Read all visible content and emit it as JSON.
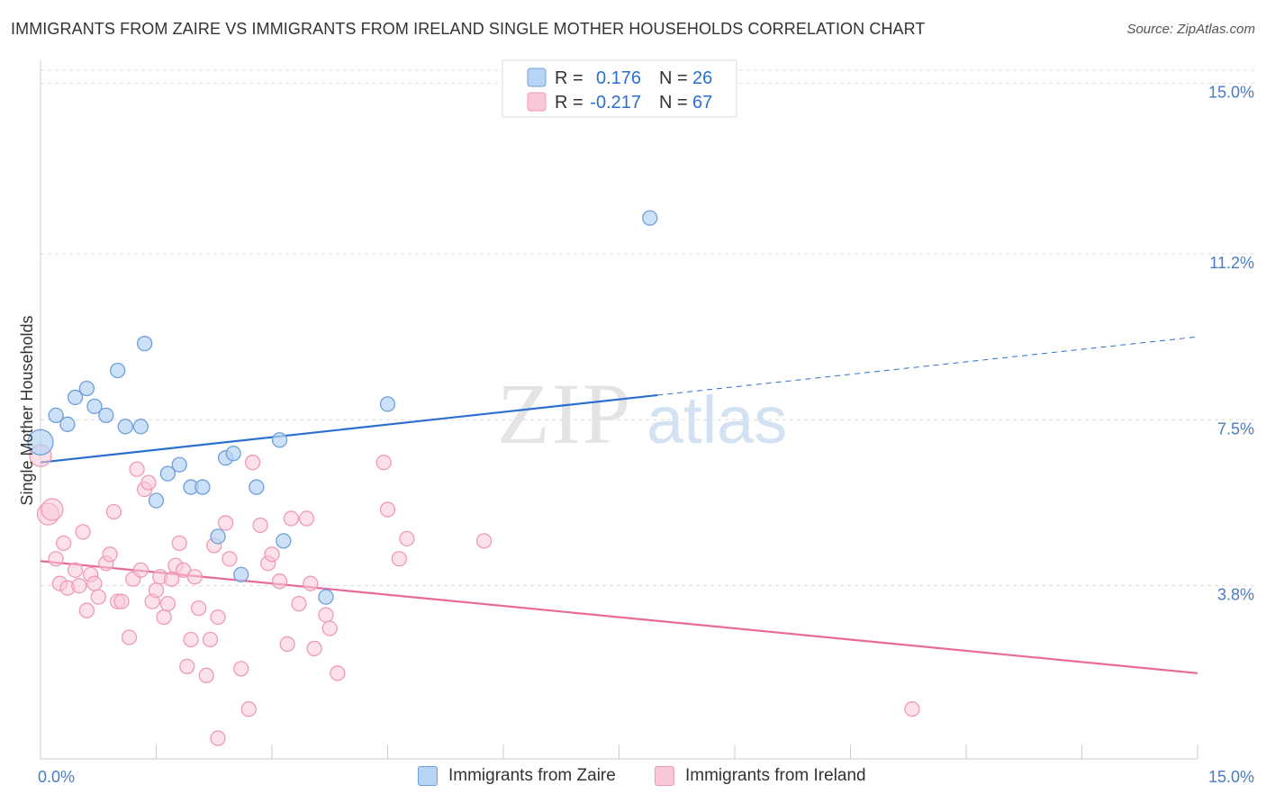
{
  "title": "IMMIGRANTS FROM ZAIRE VS IMMIGRANTS FROM IRELAND SINGLE MOTHER HOUSEHOLDS CORRELATION CHART",
  "source": "Source: ZipAtlas.com",
  "watermark": {
    "zip": "ZIP",
    "atlas": "atlas"
  },
  "legend": {
    "zaire": {
      "r_label": "R =",
      "r_value": "0.176",
      "n_label": "N =",
      "n_value": "26"
    },
    "ireland": {
      "r_label": "R =",
      "r_value": "-0.217",
      "n_label": "N =",
      "n_value": "67"
    }
  },
  "bottom_legend": {
    "zaire": "Immigrants from Zaire",
    "ireland": "Immigrants from Ireland"
  },
  "colors": {
    "zaire_fill": "#b7d3f5",
    "zaire_stroke": "#6f9fd8",
    "zaire_line": "#2b6fd0",
    "ireland_fill": "#f9c8d7",
    "ireland_stroke": "#ef9ab5",
    "ireland_line": "#e8699a",
    "tick_text": "#4a7cc0",
    "grid": "#dddddd"
  },
  "chart_data": {
    "type": "scatter",
    "title": "IMMIGRANTS FROM ZAIRE VS IMMIGRANTS FROM IRELAND SINGLE MOTHER HOUSEHOLDS CORRELATION CHART",
    "xlabel": "",
    "ylabel": "Single Mother Households",
    "xlim": [
      0,
      15
    ],
    "ylim": [
      0,
      15.5
    ],
    "x_tick_labels": [
      "0.0%",
      "15.0%"
    ],
    "y_ticks": [
      3.8,
      7.5,
      11.2,
      15.0
    ],
    "y_tick_labels": [
      "3.8%",
      "7.5%",
      "11.2%",
      "15.0%"
    ],
    "grid": true,
    "legend_position": "top-center",
    "series": [
      {
        "name": "Immigrants from Zaire",
        "points": [
          [
            0.0,
            7.0
          ],
          [
            0.2,
            7.6
          ],
          [
            0.35,
            7.4
          ],
          [
            0.45,
            8.0
          ],
          [
            0.6,
            8.2
          ],
          [
            0.7,
            7.8
          ],
          [
            0.85,
            7.6
          ],
          [
            1.0,
            8.6
          ],
          [
            1.1,
            7.35
          ],
          [
            1.3,
            7.35
          ],
          [
            1.35,
            9.2
          ],
          [
            1.5,
            5.7
          ],
          [
            1.65,
            6.3
          ],
          [
            1.8,
            6.5
          ],
          [
            1.95,
            6.0
          ],
          [
            2.1,
            6.0
          ],
          [
            2.3,
            4.9
          ],
          [
            2.4,
            6.65
          ],
          [
            2.5,
            6.75
          ],
          [
            2.6,
            4.05
          ],
          [
            2.8,
            6.0
          ],
          [
            3.1,
            7.05
          ],
          [
            3.15,
            4.8
          ],
          [
            3.7,
            3.55
          ],
          [
            4.5,
            7.85
          ],
          [
            7.9,
            12.0
          ]
        ],
        "trend": {
          "x": [
            0,
            8.0
          ],
          "y": [
            6.55,
            8.05
          ],
          "extended_x": [
            8.0,
            15.0
          ],
          "extended_y": [
            8.05,
            9.35
          ]
        }
      },
      {
        "name": "Immigrants from Ireland",
        "points": [
          [
            0.0,
            6.7
          ],
          [
            0.1,
            5.4
          ],
          [
            0.15,
            5.5
          ],
          [
            0.2,
            4.4
          ],
          [
            0.25,
            3.85
          ],
          [
            0.3,
            4.75
          ],
          [
            0.35,
            3.75
          ],
          [
            0.45,
            4.15
          ],
          [
            0.5,
            3.8
          ],
          [
            0.55,
            5.0
          ],
          [
            0.6,
            3.25
          ],
          [
            0.65,
            4.05
          ],
          [
            0.7,
            3.85
          ],
          [
            0.75,
            3.55
          ],
          [
            0.85,
            4.3
          ],
          [
            0.9,
            4.5
          ],
          [
            0.95,
            5.45
          ],
          [
            1.0,
            3.45
          ],
          [
            1.05,
            3.45
          ],
          [
            1.15,
            2.65
          ],
          [
            1.2,
            3.95
          ],
          [
            1.25,
            6.4
          ],
          [
            1.3,
            4.15
          ],
          [
            1.35,
            5.95
          ],
          [
            1.4,
            6.1
          ],
          [
            1.45,
            3.45
          ],
          [
            1.5,
            3.7
          ],
          [
            1.55,
            4.0
          ],
          [
            1.6,
            3.1
          ],
          [
            1.65,
            3.4
          ],
          [
            1.7,
            3.95
          ],
          [
            1.75,
            4.25
          ],
          [
            1.8,
            4.75
          ],
          [
            1.85,
            4.15
          ],
          [
            1.9,
            2.0
          ],
          [
            1.95,
            2.6
          ],
          [
            2.0,
            4.0
          ],
          [
            2.05,
            3.3
          ],
          [
            2.15,
            1.8
          ],
          [
            2.2,
            2.6
          ],
          [
            2.25,
            4.7
          ],
          [
            2.3,
            3.1
          ],
          [
            2.4,
            5.2
          ],
          [
            2.45,
            4.4
          ],
          [
            2.6,
            1.95
          ],
          [
            2.7,
            1.05
          ],
          [
            2.75,
            6.55
          ],
          [
            2.85,
            5.15
          ],
          [
            2.95,
            4.3
          ],
          [
            3.0,
            4.5
          ],
          [
            3.1,
            3.9
          ],
          [
            3.2,
            2.5
          ],
          [
            3.25,
            5.3
          ],
          [
            3.35,
            3.4
          ],
          [
            3.45,
            5.3
          ],
          [
            3.5,
            3.85
          ],
          [
            3.55,
            2.4
          ],
          [
            3.7,
            3.15
          ],
          [
            3.75,
            2.85
          ],
          [
            3.85,
            1.85
          ],
          [
            4.45,
            6.55
          ],
          [
            4.5,
            5.5
          ],
          [
            4.65,
            4.4
          ],
          [
            4.75,
            4.85
          ],
          [
            5.75,
            4.8
          ],
          [
            11.3,
            1.05
          ],
          [
            2.3,
            0.4
          ]
        ],
        "trend": {
          "x": [
            0,
            15.0
          ],
          "y": [
            4.35,
            1.85
          ]
        }
      }
    ]
  }
}
